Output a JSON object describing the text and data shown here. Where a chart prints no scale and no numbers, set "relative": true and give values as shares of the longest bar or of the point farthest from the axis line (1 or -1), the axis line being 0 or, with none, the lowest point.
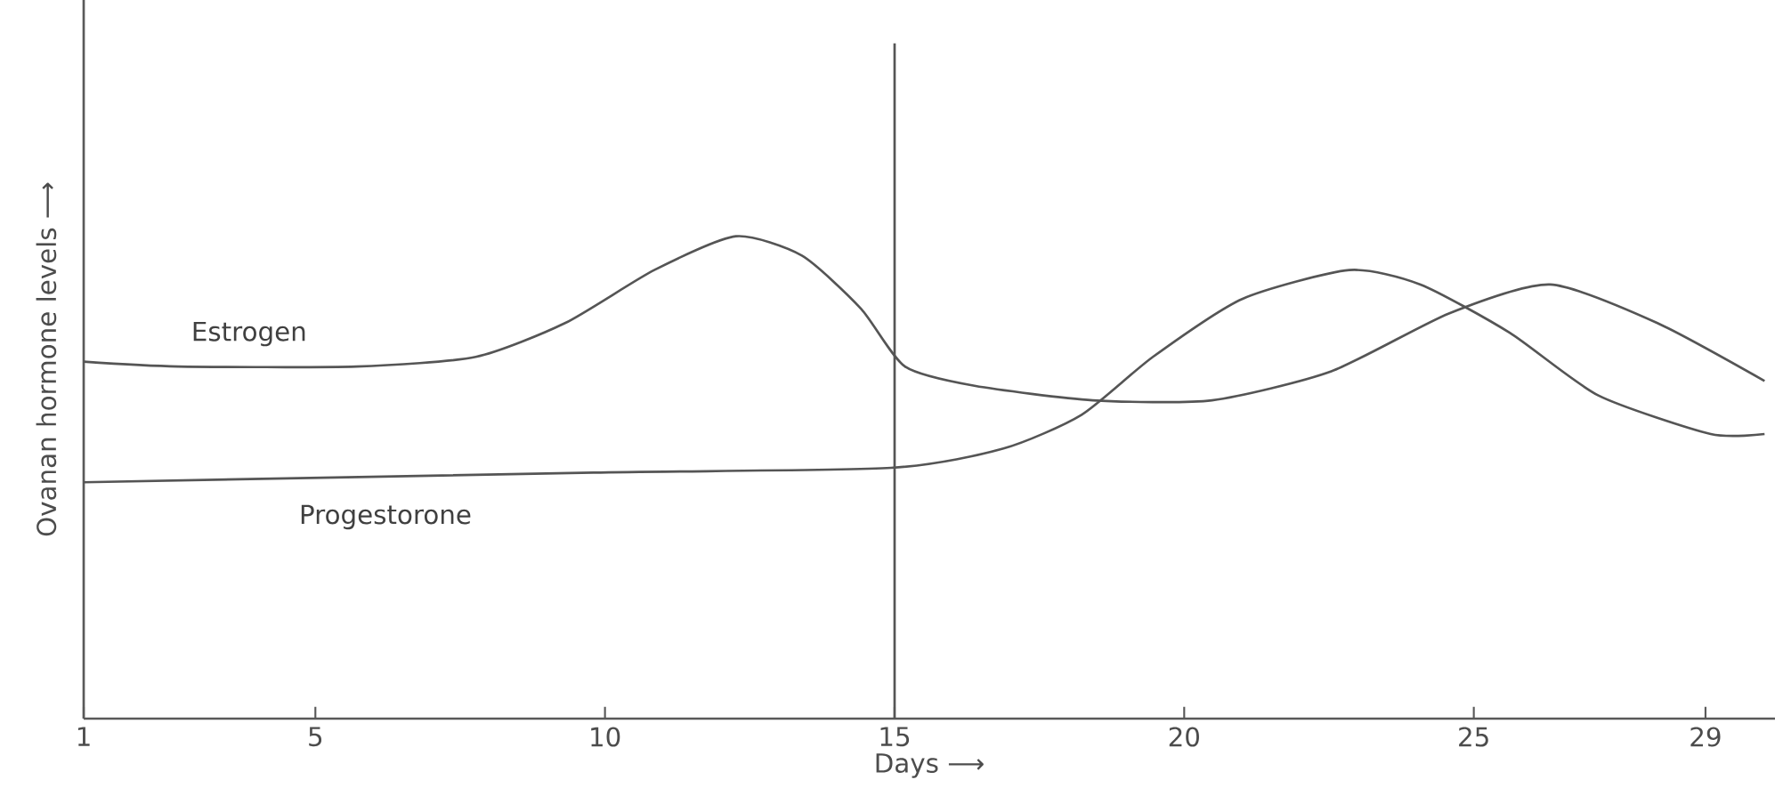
{
  "chart_data": {
    "type": "line",
    "relative": true,
    "xlabel": "Days ⟶",
    "ylabel": "Ovanan hormone levels ⟶",
    "xlim": [
      1,
      30.2
    ],
    "xticks": [
      1,
      5,
      10,
      15,
      20,
      25,
      29
    ],
    "ref_lines": [
      {
        "axis": "x",
        "value": 15,
        "color": "#555555"
      }
    ],
    "series": [
      {
        "name": "Estrogen",
        "color": "#555555",
        "x": [
          1.0,
          2.63,
          5.71,
          7.77,
          9.31,
          10.85,
          12.26,
          13.4,
          14.42,
          15.18,
          16.38,
          18.42,
          20.48,
          22.54,
          24.57,
          26.32,
          28.17,
          30.02
        ],
        "values": [
          0.74,
          0.73,
          0.73,
          0.75,
          0.82,
          0.93,
          1.0,
          0.96,
          0.85,
          0.73,
          0.69,
          0.66,
          0.66,
          0.72,
          0.84,
          0.9,
          0.82,
          0.7
        ]
      },
      {
        "name": "Progestorone",
        "color": "#555555",
        "x": [
          1.0,
          9.8,
          14.94,
          16.88,
          18.23,
          19.46,
          21.0,
          22.85,
          24.08,
          25.62,
          27.15,
          29.09,
          30.02
        ],
        "values": [
          0.49,
          0.51,
          0.52,
          0.56,
          0.63,
          0.75,
          0.87,
          0.93,
          0.9,
          0.8,
          0.67,
          0.59,
          0.59
        ]
      }
    ],
    "marker": "none",
    "line_style": "solid",
    "grid": false
  }
}
